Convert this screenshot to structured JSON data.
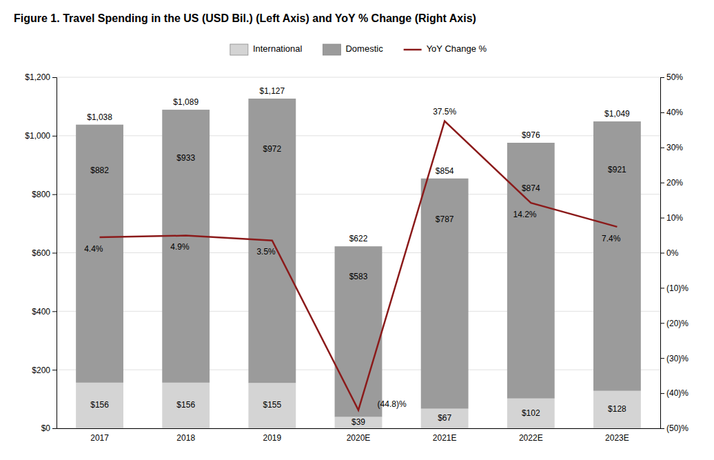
{
  "chart_data": {
    "type": "bar",
    "title": "Figure 1. Travel Spending in the US (USD Bil.) (Left Axis) and YoY % Change (Right Axis)",
    "categories": [
      "2017",
      "2018",
      "2019",
      "2020E",
      "2021E",
      "2022E",
      "2023E"
    ],
    "stacked": true,
    "data_labels": true,
    "grid": true,
    "legend": "top",
    "series": [
      {
        "name": "International",
        "type": "bar",
        "color": "#d4d4d4",
        "values": [
          156,
          156,
          155,
          39,
          67,
          102,
          128
        ],
        "value_labels": [
          "$156",
          "$156",
          "$155",
          "$39",
          "$67",
          "$102",
          "$128"
        ]
      },
      {
        "name": "Domestic",
        "type": "bar",
        "color": "#9b9b9b",
        "values": [
          882,
          933,
          972,
          583,
          787,
          874,
          921
        ],
        "value_labels": [
          "$882",
          "$933",
          "$972",
          "$583",
          "$787",
          "$874",
          "$921"
        ]
      },
      {
        "name": "YoY Change %",
        "type": "line",
        "axis": "y2",
        "color": "#8b1a1a",
        "values": [
          4.4,
          4.9,
          3.5,
          -44.8,
          37.5,
          14.2,
          7.4
        ],
        "value_labels": [
          "4.4%",
          "4.9%",
          "3.5%",
          "(44.8)%",
          "37.5%",
          "14.2%",
          "7.4%"
        ]
      }
    ],
    "totals": [
      1038,
      1089,
      1127,
      622,
      854,
      976,
      1049
    ],
    "total_labels": [
      "$1,038",
      "$1,089",
      "$1,127",
      "$622",
      "$854",
      "$976",
      "$1,049"
    ],
    "ylim": [
      0,
      1200
    ],
    "yticks": [
      {
        "value": 0,
        "label": "$0"
      },
      {
        "value": 200,
        "label": "$200"
      },
      {
        "value": 400,
        "label": "$400"
      },
      {
        "value": 600,
        "label": "$600"
      },
      {
        "value": 800,
        "label": "$800"
      },
      {
        "value": 1000,
        "label": "$1,000"
      },
      {
        "value": 1200,
        "label": "$1,200"
      }
    ],
    "y2lim": [
      -50,
      50
    ],
    "y2ticks": [
      {
        "value": -50,
        "label": "(50)%"
      },
      {
        "value": -40,
        "label": "(40)%"
      },
      {
        "value": -30,
        "label": "(30)%"
      },
      {
        "value": -20,
        "label": "(20)%"
      },
      {
        "value": -10,
        "label": "(10)%"
      },
      {
        "value": 0,
        "label": "0%"
      },
      {
        "value": 10,
        "label": "10%"
      },
      {
        "value": 20,
        "label": "20%"
      },
      {
        "value": 30,
        "label": "30%"
      },
      {
        "value": 40,
        "label": "40%"
      },
      {
        "value": 50,
        "label": "50%"
      }
    ]
  }
}
